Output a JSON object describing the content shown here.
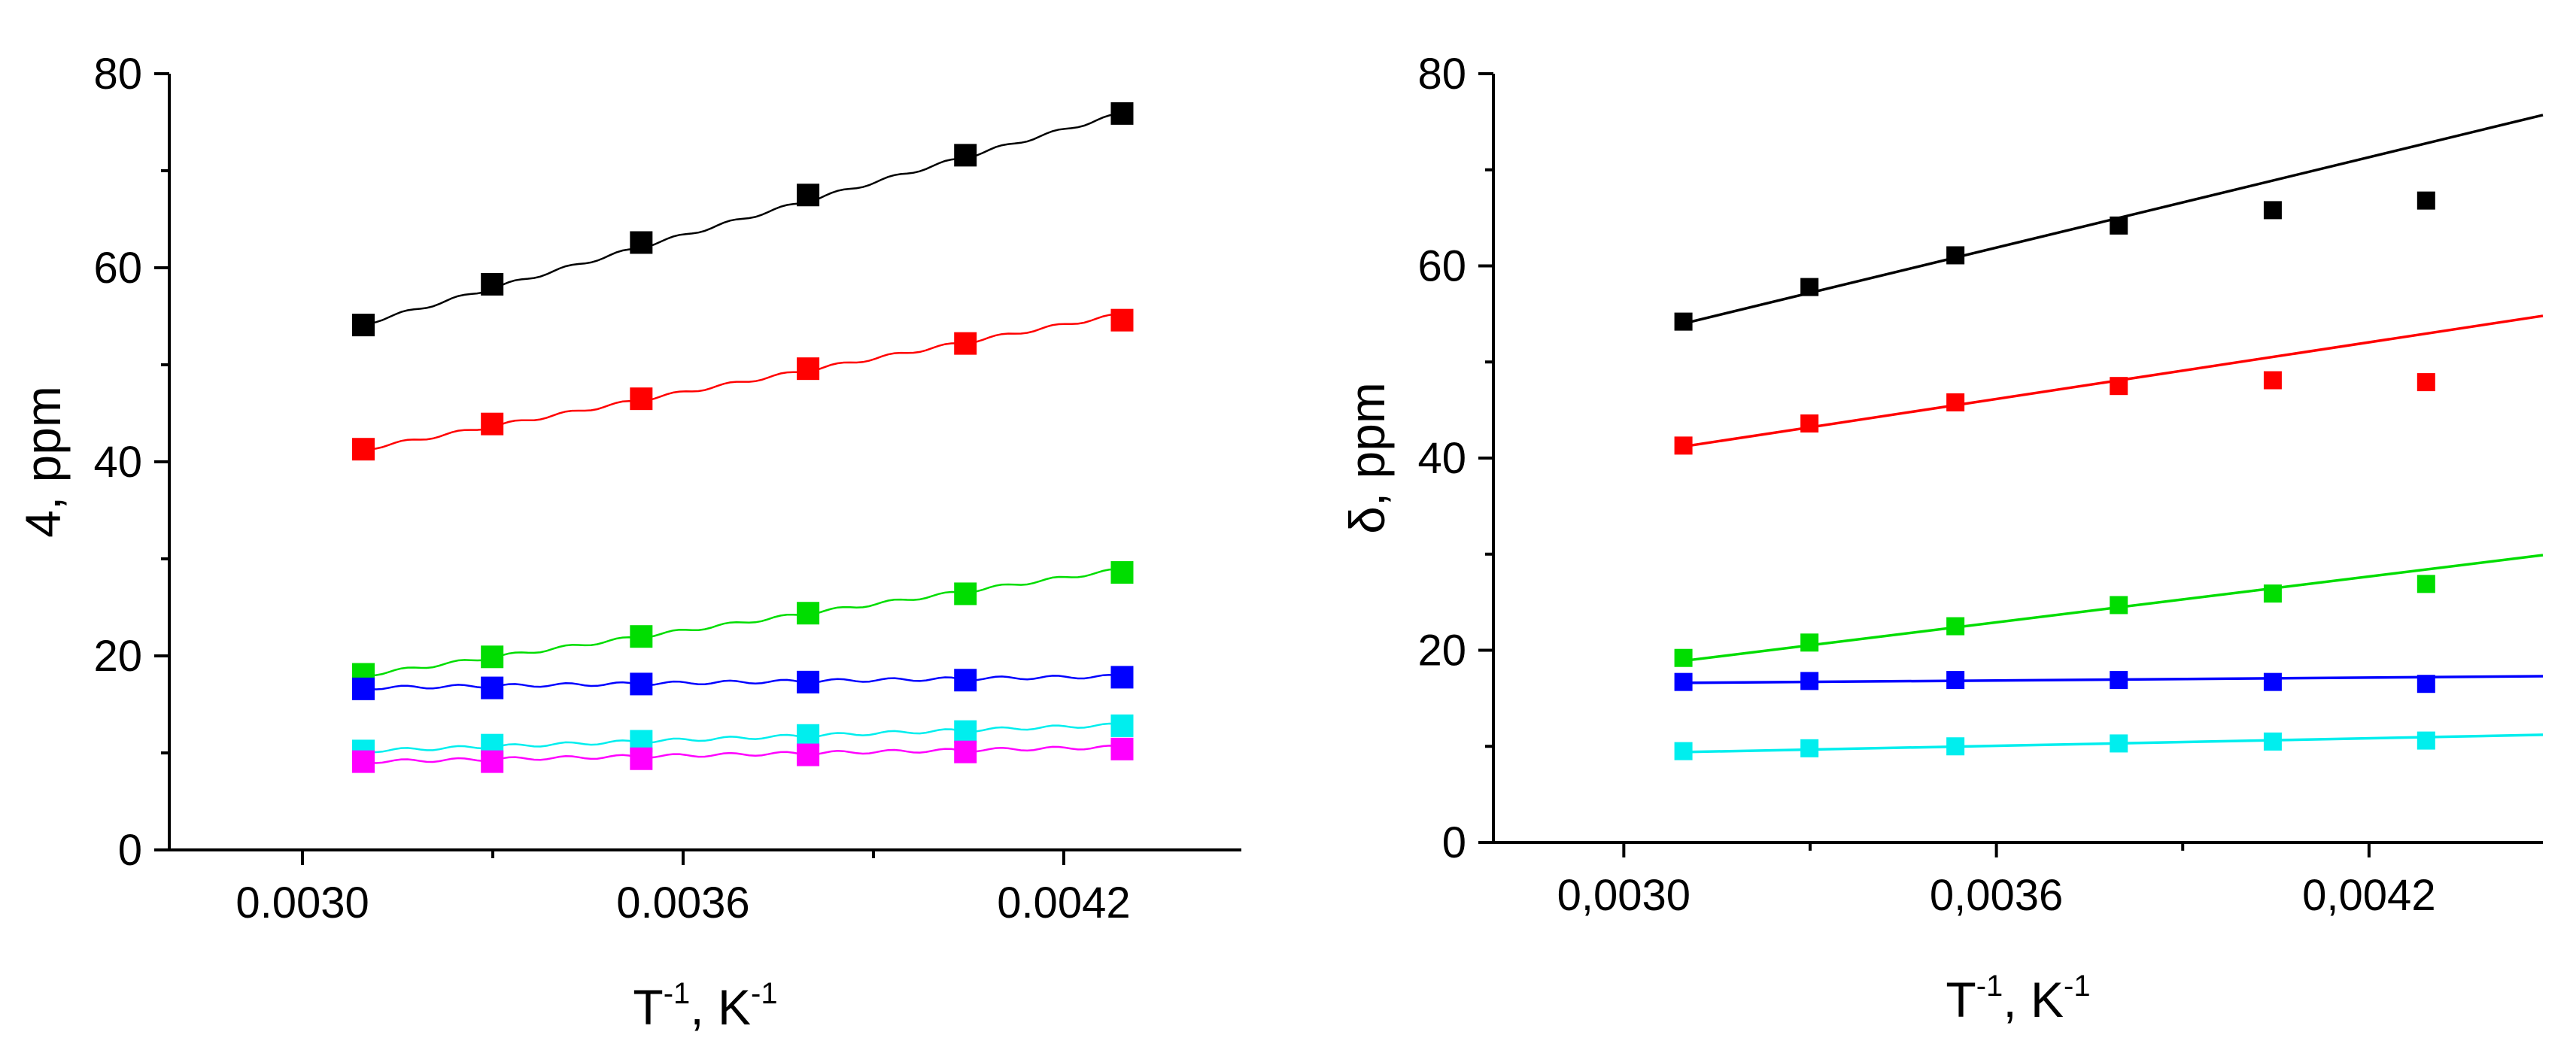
{
  "chart_data": [
    {
      "type": "scatter",
      "xlabel": "T",
      "xlabel_sup": "-1",
      "xlabel_unit": ", K",
      "xlabel_unit_sup": "-1",
      "ylabel": "4, ppm",
      "xlim": [
        0.00279,
        0.00448
      ],
      "ylim": [
        0,
        80
      ],
      "xticks": [
        0.003,
        0.0036,
        0.0042
      ],
      "xtick_labels": [
        "0.0030",
        "0.0036",
        "0.0042"
      ],
      "yticks": [
        0,
        20,
        40,
        60,
        80
      ],
      "ytick_labels": [
        "0",
        "20",
        "40",
        "60",
        "80"
      ],
      "x": [
        0.003096,
        0.003299,
        0.003534,
        0.003797,
        0.004045,
        0.004292
      ],
      "series": [
        {
          "name": "black",
          "color": "#000000",
          "values": [
            54.1,
            58.3,
            62.6,
            67.5,
            71.6,
            75.9
          ],
          "fit": [
            54.2,
            75.9
          ]
        },
        {
          "name": "red",
          "color": "#ff0000",
          "values": [
            41.3,
            43.9,
            46.5,
            49.6,
            52.2,
            54.6
          ],
          "fit": [
            41.3,
            55.2
          ]
        },
        {
          "name": "green",
          "color": "#00dd00",
          "values": [
            18.1,
            19.9,
            22.0,
            24.4,
            26.4,
            28.6
          ],
          "fit": [
            18.0,
            28.9
          ]
        },
        {
          "name": "blue",
          "color": "#0000ff",
          "values": [
            16.6,
            16.7,
            17.1,
            17.3,
            17.5,
            17.8
          ],
          "fit": [
            16.7,
            17.9
          ]
        },
        {
          "name": "cyan",
          "color": "#00eeee",
          "values": [
            10.2,
            10.8,
            11.2,
            11.8,
            12.2,
            12.8
          ],
          "fit": [
            10.2,
            12.9
          ]
        },
        {
          "name": "magenta",
          "color": "#ff00ff",
          "values": [
            9.1,
            9.1,
            9.4,
            9.8,
            10.1,
            10.4
          ],
          "fit": [
            9.1,
            10.6
          ]
        }
      ]
    },
    {
      "type": "scatter",
      "xlabel": "T",
      "xlabel_sup": "-1",
      "xlabel_unit": ", K",
      "xlabel_unit_sup": "-1",
      "ylabel": "δ, ppm",
      "xlim": [
        0.00279,
        0.00448
      ],
      "ylim": [
        0,
        80
      ],
      "xticks": [
        0.003,
        0.0036,
        0.0042
      ],
      "xtick_labels": [
        "0,0030",
        "0,0036",
        "0,0042"
      ],
      "yticks": [
        0,
        20,
        40,
        60,
        80
      ],
      "ytick_labels": [
        "0",
        "20",
        "40",
        "60",
        "80"
      ],
      "x": [
        0.003096,
        0.003299,
        0.003534,
        0.003797,
        0.004045,
        0.004292
      ],
      "series": [
        {
          "name": "black",
          "color": "#000000",
          "values": [
            54.2,
            57.8,
            61.1,
            64.2,
            65.8,
            66.8
          ],
          "fit": [
            54.0,
            75.7
          ]
        },
        {
          "name": "red",
          "color": "#ff0000",
          "values": [
            41.3,
            43.6,
            45.8,
            47.5,
            48.1,
            47.9
          ],
          "fit": [
            41.2,
            54.8
          ]
        },
        {
          "name": "green",
          "color": "#00dd00",
          "values": [
            19.2,
            20.8,
            22.5,
            24.7,
            25.9,
            26.9
          ],
          "fit": [
            18.9,
            29.9
          ]
        },
        {
          "name": "blue",
          "color": "#0000ff",
          "values": [
            16.7,
            16.8,
            16.9,
            16.9,
            16.7,
            16.5
          ],
          "fit": [
            16.6,
            17.3
          ]
        },
        {
          "name": "cyan",
          "color": "#00eeee",
          "values": [
            9.5,
            9.8,
            10.0,
            10.3,
            10.5,
            10.6
          ],
          "fit": [
            9.4,
            11.2
          ]
        }
      ]
    }
  ]
}
